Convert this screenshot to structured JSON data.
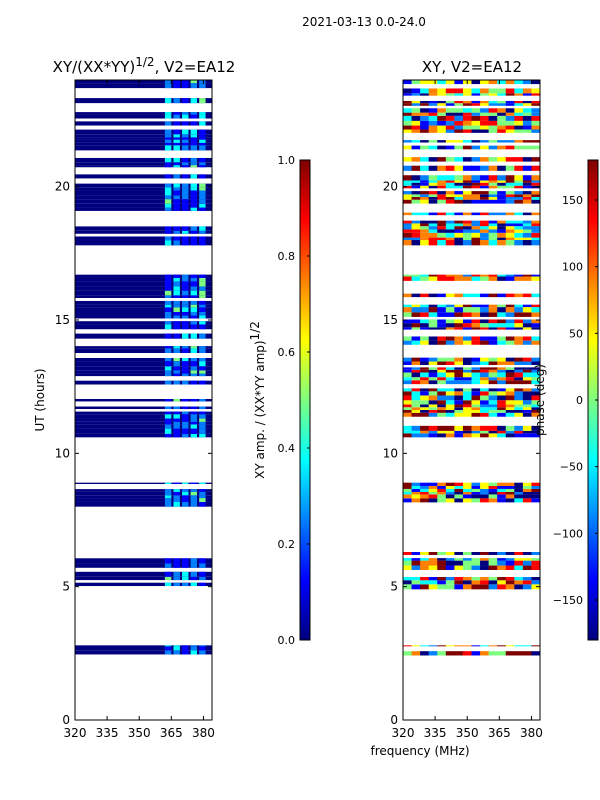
{
  "figure_title": "2021-03-13 0.0-24.0",
  "colors": {
    "jet": [
      "#00007f",
      "#0000ff",
      "#007fff",
      "#00ffff",
      "#7fff7f",
      "#ffff00",
      "#ff7f00",
      "#ff0000",
      "#7f0000"
    ],
    "axis": "#000000",
    "background": "#ffffff"
  },
  "chart_data": [
    {
      "type": "heatmap",
      "title": "XY/(XX*YY)",
      "title_exp": "1/2",
      "title_suffix": ", V2=EA12",
      "xlabel": "",
      "ylabel": "UT (hours)",
      "xlim": [
        320,
        384
      ],
      "ylim": [
        0,
        24
      ],
      "xticks": [
        "320",
        "335",
        "350",
        "365",
        "380"
      ],
      "yticks": [
        "0",
        "5",
        "10",
        "15",
        "20"
      ],
      "xtick_values": [
        320,
        335,
        350,
        365,
        380
      ],
      "ytick_values": [
        0,
        5,
        10,
        15,
        20
      ],
      "data_bands_hours": [
        [
          2.3,
          2.8
        ],
        [
          4.9,
          6.3
        ],
        [
          8.0,
          8.9
        ],
        [
          10.6,
          16.7
        ],
        [
          17.8,
          24.0
        ]
      ],
      "colorbar": {
        "label": "XY amp. / (XX*YY amp)",
        "label_exp": "1/2",
        "range": [
          0.0,
          1.0
        ],
        "ticks": [
          "0.0",
          "0.2",
          "0.4",
          "0.6",
          "0.8",
          "1.0"
        ],
        "tick_values": [
          0.0,
          0.2,
          0.4,
          0.6,
          0.8,
          1.0
        ]
      }
    },
    {
      "type": "heatmap",
      "title": "XY, V2=EA12",
      "xlabel": "frequency (MHz)",
      "ylabel": "",
      "xlim": [
        320,
        384
      ],
      "ylim": [
        0,
        24
      ],
      "xticks": [
        "320",
        "335",
        "350",
        "365",
        "380"
      ],
      "yticks": [
        "0",
        "5",
        "10",
        "15",
        "20"
      ],
      "xtick_values": [
        320,
        335,
        350,
        365,
        380
      ],
      "ytick_values": [
        0,
        5,
        10,
        15,
        20
      ],
      "data_bands_hours": [
        [
          2.3,
          2.8
        ],
        [
          4.9,
          6.3
        ],
        [
          8.0,
          8.9
        ],
        [
          10.6,
          16.7
        ],
        [
          17.8,
          24.0
        ]
      ],
      "colorbar": {
        "label": "phase (deg)",
        "range": [
          -180,
          180
        ],
        "ticks": [
          "−150",
          "−100",
          "−50",
          "0",
          "50",
          "100",
          "150"
        ],
        "tick_values": [
          -150,
          -100,
          -50,
          0,
          50,
          100,
          150
        ]
      }
    }
  ]
}
